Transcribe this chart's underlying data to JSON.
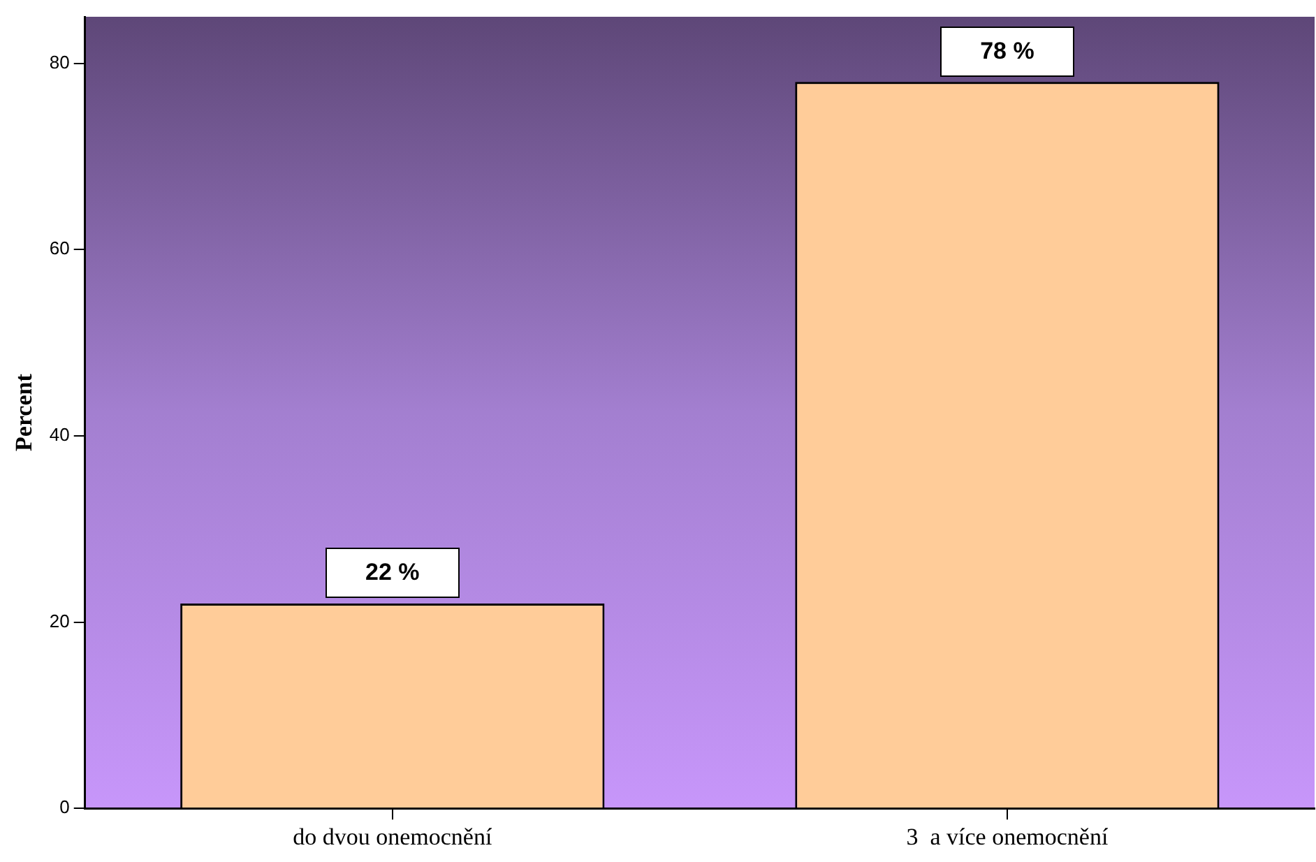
{
  "chart_data": {
    "type": "bar",
    "ylabel": "Percent",
    "categories": [
      "do dvou onemocnění",
      "3  a více onemocnění"
    ],
    "values": [
      22,
      78
    ],
    "color": "#ffcc99",
    "value_labels": [
      "22 %",
      "78 %"
    ],
    "ylim": [
      0,
      85
    ],
    "yticks": [
      0,
      20,
      40,
      60,
      80
    ],
    "grid": false,
    "legend": false
  }
}
